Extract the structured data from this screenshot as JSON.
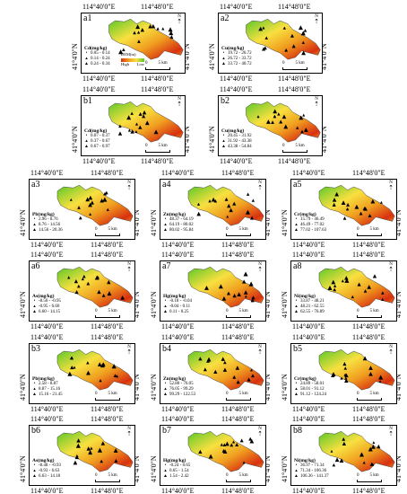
{
  "grid": {
    "lon_left": "114°40'0\"E",
    "lon_right": "114°48'0\"E",
    "lat": "41°4'0\"N",
    "north": "N",
    "scale_zero": "0",
    "scale_dist": "5 km"
  },
  "dem": {
    "title": "DEM(m)",
    "high": "High",
    "low": "Low"
  },
  "colors": {
    "high": "#d83010",
    "mid1": "#f0a020",
    "mid2": "#f8e040",
    "low": "#58c828",
    "lowlight": "#a8e060"
  },
  "panels": [
    {
      "id": "a1",
      "title": "Cd(mg/kg)",
      "classes": [
        "0.05 - 0.14",
        "0.14 - 0.24",
        "0.24 - 0.34"
      ],
      "dem": true
    },
    {
      "id": "a2",
      "title": "Cu(mg/kg)",
      "classes": [
        "19.72 - 26.72",
        "26.72 - 33.72",
        "33.72 - 40.72"
      ]
    },
    {
      "id": "b1",
      "title": "Cd(mg/kg)",
      "classes": [
        "0.07 - 0.37",
        "0.37 - 0.67",
        "0.67 - 0.97"
      ]
    },
    {
      "id": "b2",
      "title": "Cu(mg/kg)",
      "classes": [
        "20.45 - 31.92",
        "31.92 - 43.38",
        "43.38 - 54.84"
      ]
    },
    {
      "id": "a3",
      "title": "Pb(mg/kg)",
      "classes": [
        "2.96 - 8.76",
        "8.76 - 14.56",
        "14.56 - 20.36"
      ]
    },
    {
      "id": "a4",
      "title": "Zn(mg/kg)",
      "classes": [
        "48.37 - 64.19",
        "64.19 - 80.02",
        "80.02 - 95.84"
      ]
    },
    {
      "id": "a5",
      "title": "Cr(mg/kg)",
      "classes": [
        "15.79 - 46.49",
        "46.49 - 77.02",
        "77.02 - 107.63"
      ]
    },
    {
      "id": "a6",
      "title": "As(mg/kg)",
      "classes": [
        "-8.50 - -0.95",
        "-0.95 - 6.60",
        "6.60 - 14.15"
      ]
    },
    {
      "id": "a7",
      "title": "Hg(mg/kg)",
      "classes": [
        "-0.18 - -0.04",
        "-0.04 - 0.11",
        "0.11 - 0.25"
      ]
    },
    {
      "id": "a8",
      "title": "Ni(mg/kg)",
      "classes": [
        "33.87 - 48.21",
        "48.21 - 62.55",
        "62.55 - 76.89"
      ]
    },
    {
      "id": "b3",
      "title": "Pb(mg/kg)",
      "classes": [
        "2.58 - 8.87",
        "8.87 - 15.16",
        "15.16 - 21.45"
      ]
    },
    {
      "id": "b4",
      "title": "Zn(mg/kg)",
      "classes": [
        "52.80 - 76.05",
        "76.05 - 99.29",
        "99.29 - 122.53"
      ]
    },
    {
      "id": "b5",
      "title": "Cr(mg/kg)",
      "classes": [
        "24.89 - 58.01",
        "58.01 - 91.12",
        "91.12 - 124.24"
      ]
    },
    {
      "id": "b6",
      "title": "As(mg/kg)",
      "classes": [
        "-8.48 - -0.93",
        "-0.93 - 6.63",
        "6.63 - 14.18"
      ]
    },
    {
      "id": "b7",
      "title": "Hg(mg/kg)",
      "classes": [
        "-0.24 - 0.65",
        "0.65 - 1.54",
        "1.54 - 2.42"
      ]
    },
    {
      "id": "b8",
      "title": "Ni(mg/kg)",
      "classes": [
        "36.97 - 71.34",
        "71.34 - 106.36",
        "106.36 - 141.37"
      ]
    }
  ]
}
